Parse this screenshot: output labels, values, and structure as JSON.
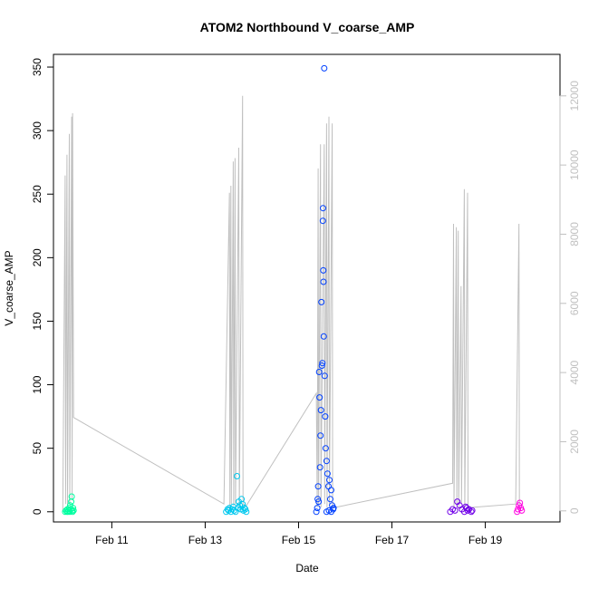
{
  "chart_data": {
    "type": "scatter",
    "title": "ATOM2 Northbound V_coarse_AMP",
    "xlabel": "Date",
    "ylabel": "V_coarse_AMP",
    "x_ticks": [
      "Feb 11",
      "Feb 13",
      "Feb 15",
      "Feb 17",
      "Feb 19"
    ],
    "x_tick_days": [
      11,
      13,
      15,
      17,
      19
    ],
    "xlim_days": [
      9.75,
      20.6
    ],
    "ylim": [
      -8,
      360
    ],
    "y_ticks": [
      0,
      50,
      100,
      150,
      200,
      250,
      300,
      350
    ],
    "y2lim": [
      -320,
      13200
    ],
    "y2_ticks": [
      0,
      2000,
      4000,
      6000,
      8000,
      10000,
      12000
    ],
    "grid": false,
    "series": [
      {
        "color": "#00ffa0",
        "points": [
          [
            10.0,
            0
          ],
          [
            10.02,
            1
          ],
          [
            10.04,
            0
          ],
          [
            10.05,
            2
          ],
          [
            10.06,
            0
          ],
          [
            10.08,
            1
          ],
          [
            10.09,
            3
          ],
          [
            10.1,
            0
          ],
          [
            10.11,
            5
          ],
          [
            10.12,
            2
          ],
          [
            10.13,
            8
          ],
          [
            10.14,
            12
          ],
          [
            10.15,
            1
          ],
          [
            10.16,
            0
          ],
          [
            10.17,
            3
          ],
          [
            10.18,
            1
          ]
        ]
      },
      {
        "color": "#00c8ee",
        "points": [
          [
            13.45,
            0
          ],
          [
            13.48,
            2
          ],
          [
            13.5,
            1
          ],
          [
            13.52,
            3
          ],
          [
            13.55,
            0
          ],
          [
            13.58,
            2
          ],
          [
            13.6,
            4
          ],
          [
            13.62,
            1
          ],
          [
            13.65,
            0
          ],
          [
            13.68,
            28
          ],
          [
            13.7,
            3
          ],
          [
            13.72,
            8
          ],
          [
            13.74,
            5
          ],
          [
            13.76,
            2
          ],
          [
            13.78,
            10
          ],
          [
            13.8,
            6
          ],
          [
            13.82,
            1
          ],
          [
            13.84,
            3
          ],
          [
            13.86,
            2
          ],
          [
            13.88,
            0
          ]
        ]
      },
      {
        "color": "#0040ff",
        "points": [
          [
            15.38,
            0
          ],
          [
            15.4,
            3
          ],
          [
            15.41,
            10
          ],
          [
            15.42,
            20
          ],
          [
            15.43,
            8
          ],
          [
            15.44,
            110
          ],
          [
            15.45,
            90
          ],
          [
            15.46,
            35
          ],
          [
            15.47,
            60
          ],
          [
            15.48,
            80
          ],
          [
            15.49,
            165
          ],
          [
            15.5,
            115
          ],
          [
            15.51,
            117
          ],
          [
            15.52,
            229
          ],
          [
            15.525,
            239
          ],
          [
            15.53,
            190
          ],
          [
            15.535,
            181
          ],
          [
            15.54,
            138
          ],
          [
            15.55,
            349
          ],
          [
            15.56,
            107
          ],
          [
            15.57,
            75
          ],
          [
            15.58,
            50
          ],
          [
            15.6,
            40
          ],
          [
            15.62,
            30
          ],
          [
            15.64,
            20
          ],
          [
            15.66,
            25
          ],
          [
            15.68,
            10
          ],
          [
            15.7,
            17
          ],
          [
            15.72,
            5
          ],
          [
            15.74,
            2
          ],
          [
            15.6,
            0
          ],
          [
            15.65,
            1
          ],
          [
            15.7,
            0
          ],
          [
            15.75,
            3
          ]
        ]
      },
      {
        "color": "#7000e8",
        "points": [
          [
            18.25,
            0
          ],
          [
            18.3,
            2
          ],
          [
            18.35,
            1
          ],
          [
            18.4,
            8
          ],
          [
            18.45,
            5
          ],
          [
            18.5,
            2
          ],
          [
            18.55,
            0
          ],
          [
            18.58,
            4
          ],
          [
            18.6,
            3
          ],
          [
            18.62,
            1
          ],
          [
            18.65,
            2
          ],
          [
            18.7,
            0
          ],
          [
            18.72,
            1
          ]
        ]
      },
      {
        "color": "#ff00e0",
        "points": [
          [
            19.68,
            0
          ],
          [
            19.7,
            2
          ],
          [
            19.72,
            5
          ],
          [
            19.74,
            7
          ],
          [
            19.76,
            3
          ],
          [
            19.78,
            1
          ]
        ]
      }
    ],
    "secondary_line": {
      "color": "#c0c0c0",
      "points": [
        [
          9.95,
          0
        ],
        [
          10.0,
          9700
        ],
        [
          10.01,
          200
        ],
        [
          10.04,
          10300
        ],
        [
          10.05,
          100
        ],
        [
          10.09,
          10900
        ],
        [
          10.1,
          200
        ],
        [
          10.14,
          11400
        ],
        [
          10.15,
          300
        ],
        [
          10.16,
          11500
        ],
        [
          10.18,
          2700
        ],
        [
          13.4,
          200
        ],
        [
          13.52,
          9200
        ],
        [
          13.53,
          100
        ],
        [
          13.55,
          9400
        ],
        [
          13.56,
          200
        ],
        [
          13.6,
          10100
        ],
        [
          13.61,
          150
        ],
        [
          13.64,
          10200
        ],
        [
          13.65,
          200
        ],
        [
          13.72,
          10500
        ],
        [
          13.73,
          100
        ],
        [
          13.8,
          12000
        ],
        [
          13.81,
          200
        ],
        [
          13.88,
          150
        ],
        [
          15.38,
          3400
        ],
        [
          15.4,
          100
        ],
        [
          15.42,
          9900
        ],
        [
          15.43,
          200
        ],
        [
          15.47,
          10600
        ],
        [
          15.48,
          100
        ],
        [
          15.55,
          10600
        ],
        [
          15.56,
          200
        ],
        [
          15.6,
          11200
        ],
        [
          15.61,
          100
        ],
        [
          15.65,
          11400
        ],
        [
          15.66,
          150
        ],
        [
          15.72,
          11200
        ],
        [
          15.73,
          100
        ],
        [
          15.78,
          100
        ],
        [
          18.3,
          800
        ],
        [
          18.32,
          8300
        ],
        [
          18.33,
          100
        ],
        [
          18.38,
          8200
        ],
        [
          18.39,
          200
        ],
        [
          18.42,
          8100
        ],
        [
          18.43,
          100
        ],
        [
          18.48,
          6500
        ],
        [
          18.49,
          200
        ],
        [
          18.55,
          9300
        ],
        [
          18.56,
          100
        ],
        [
          18.62,
          9200
        ],
        [
          18.63,
          100
        ],
        [
          18.7,
          100
        ],
        [
          19.65,
          200
        ],
        [
          19.72,
          8300
        ],
        [
          19.73,
          100
        ]
      ]
    }
  }
}
